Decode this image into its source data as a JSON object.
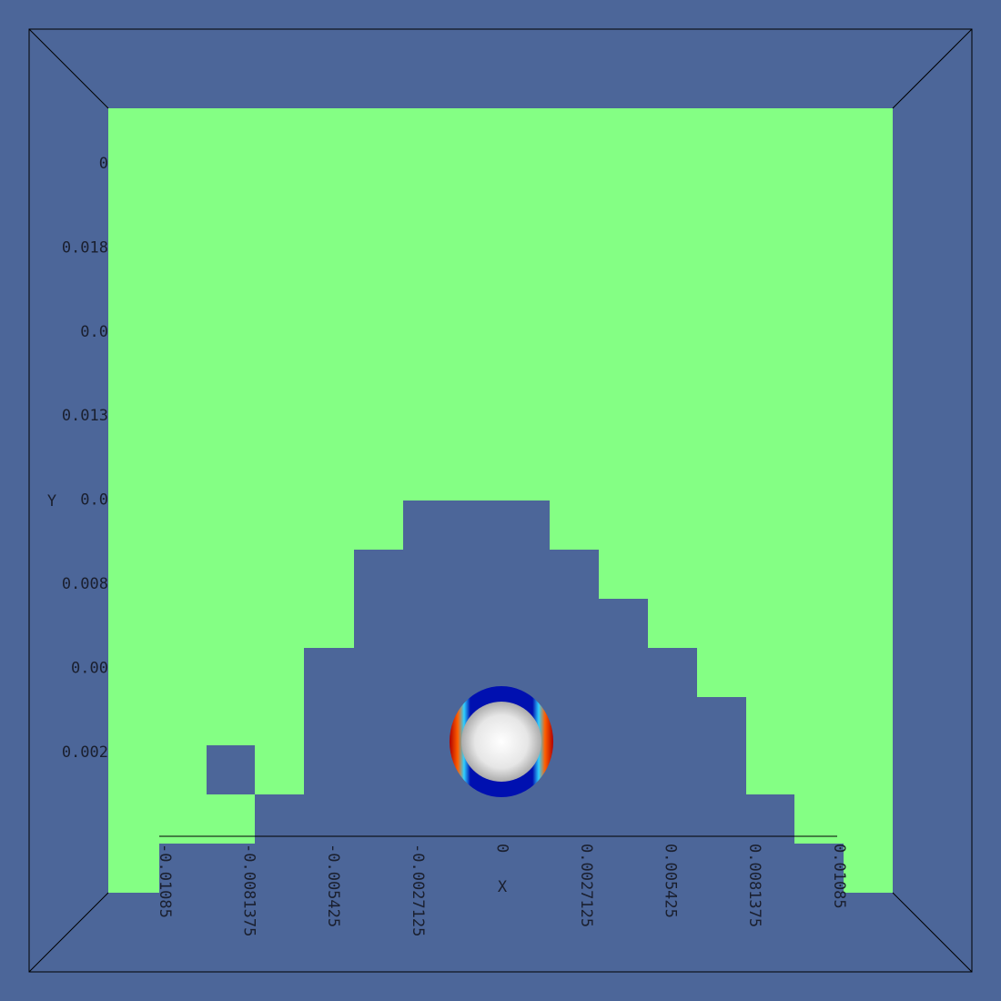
{
  "axes": {
    "y_title": "Y",
    "x_title": "X",
    "y_labels": [
      "0",
      "0.018",
      "0.0",
      "0.013",
      "0.0",
      "0.008",
      "0.00",
      "0.002"
    ],
    "x_labels": [
      "-0.01085",
      "-0.0081375",
      "-0.005425",
      "-0.0027125",
      "0",
      "0.0027125",
      "0.005425",
      "0.0081375",
      "0.01085"
    ]
  }
}
